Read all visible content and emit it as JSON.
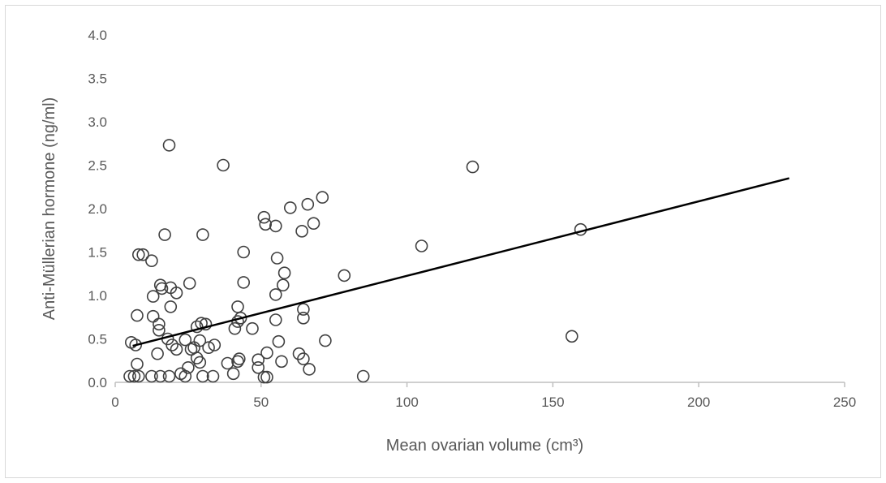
{
  "chart_data": {
    "type": "scatter",
    "title": "",
    "xlabel": "Mean ovarian volume (cm³)",
    "ylabel": "Anti-Müllerian hormone (ng/ml)",
    "xlim": [
      0,
      250
    ],
    "ylim": [
      0,
      4.0
    ],
    "x_ticks": [
      "0",
      "50",
      "100",
      "150",
      "200",
      "250"
    ],
    "y_ticks": [
      "0.0",
      "0.5",
      "1.0",
      "1.5",
      "2.0",
      "2.5",
      "3.0",
      "3.5",
      "4.0"
    ],
    "grid": false,
    "legend": "none",
    "marker": "open-circle",
    "marker_color": "#404040",
    "axis_color": "#bfbfbf",
    "trendline": {
      "type": "linear",
      "points": [
        [
          6,
          0.42
        ],
        [
          231,
          2.35
        ]
      ],
      "color": "#000000"
    },
    "points": [
      [
        18.5,
        2.73
      ],
      [
        37,
        2.5
      ],
      [
        122.5,
        2.48
      ],
      [
        71,
        2.13
      ],
      [
        60,
        2.01
      ],
      [
        66,
        2.05
      ],
      [
        51,
        1.9
      ],
      [
        51.5,
        1.82
      ],
      [
        55,
        1.8
      ],
      [
        68,
        1.83
      ],
      [
        64,
        1.74
      ],
      [
        159.5,
        1.76
      ],
      [
        17,
        1.7
      ],
      [
        30,
        1.7
      ],
      [
        105,
        1.57
      ],
      [
        8,
        1.47
      ],
      [
        9.5,
        1.47
      ],
      [
        44,
        1.5
      ],
      [
        12.5,
        1.4
      ],
      [
        55.5,
        1.43
      ],
      [
        58,
        1.26
      ],
      [
        78.5,
        1.23
      ],
      [
        25.5,
        1.14
      ],
      [
        44,
        1.15
      ],
      [
        57.5,
        1.12
      ],
      [
        15.5,
        1.12
      ],
      [
        16,
        1.08
      ],
      [
        19,
        1.09
      ],
      [
        13,
        0.99
      ],
      [
        21,
        1.03
      ],
      [
        55,
        1.01
      ],
      [
        19,
        0.87
      ],
      [
        42,
        0.87
      ],
      [
        64.5,
        0.84
      ],
      [
        7.5,
        0.77
      ],
      [
        13,
        0.76
      ],
      [
        43,
        0.74
      ],
      [
        64.5,
        0.74
      ],
      [
        55,
        0.72
      ],
      [
        42,
        0.7
      ],
      [
        15,
        0.67
      ],
      [
        29.5,
        0.68
      ],
      [
        31,
        0.67
      ],
      [
        28,
        0.64
      ],
      [
        15,
        0.6
      ],
      [
        41,
        0.62
      ],
      [
        47,
        0.62
      ],
      [
        156.5,
        0.53
      ],
      [
        18,
        0.5
      ],
      [
        24,
        0.49
      ],
      [
        29,
        0.48
      ],
      [
        72,
        0.48
      ],
      [
        5.5,
        0.46
      ],
      [
        19.5,
        0.43
      ],
      [
        7,
        0.43
      ],
      [
        34,
        0.43
      ],
      [
        56,
        0.47
      ],
      [
        27,
        0.4
      ],
      [
        21,
        0.38
      ],
      [
        26,
        0.38
      ],
      [
        32,
        0.4
      ],
      [
        14.5,
        0.33
      ],
      [
        52,
        0.34
      ],
      [
        63,
        0.33
      ],
      [
        28,
        0.28
      ],
      [
        42.5,
        0.27
      ],
      [
        42,
        0.24
      ],
      [
        49,
        0.26
      ],
      [
        64.5,
        0.27
      ],
      [
        29,
        0.23
      ],
      [
        7.5,
        0.21
      ],
      [
        38.5,
        0.22
      ],
      [
        57,
        0.24
      ],
      [
        25,
        0.17
      ],
      [
        49,
        0.17
      ],
      [
        66.5,
        0.15
      ],
      [
        22.5,
        0.1
      ],
      [
        40.5,
        0.1
      ],
      [
        51,
        0.06
      ],
      [
        52,
        0.06
      ],
      [
        5,
        0.07
      ],
      [
        6.5,
        0.07
      ],
      [
        8,
        0.07
      ],
      [
        12.5,
        0.07
      ],
      [
        15.5,
        0.07
      ],
      [
        18.5,
        0.07
      ],
      [
        24,
        0.07
      ],
      [
        30,
        0.07
      ],
      [
        33.5,
        0.07
      ],
      [
        85,
        0.07
      ]
    ]
  }
}
